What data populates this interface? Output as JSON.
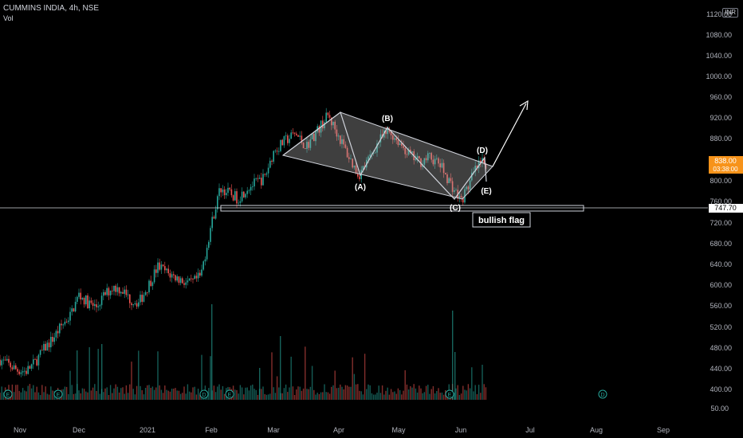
{
  "header": {
    "symbol_line": "CUMMINS INDIA, 4h, NSE",
    "vol_label": "Vol"
  },
  "currency_badge": "INR",
  "price_axis": {
    "ticks": [
      "1120.00",
      "1080.00",
      "1040.00",
      "1000.00",
      "960.00",
      "920.00",
      "880.00",
      "800.00",
      "760.00",
      "720.00",
      "680.00",
      "640.00",
      "600.00",
      "560.00",
      "520.00",
      "480.00",
      "440.00",
      "400.00"
    ],
    "last_price": "838.00",
    "countdown": "03:38:00",
    "level_label": "747.70",
    "volume_tick": "50.00"
  },
  "time_axis": [
    "Nov",
    "Dec",
    "2021",
    "Feb",
    "Mar",
    "Apr",
    "May",
    "Jun",
    "Jul",
    "Aug",
    "Sep"
  ],
  "annotations": {
    "wave_a": "(A)",
    "wave_b": "(B)",
    "wave_c": "(C)",
    "wave_d": "(D)",
    "wave_e": "(E)",
    "pattern_label": "bullish flag"
  },
  "event_markers": [
    "E",
    "E",
    "D",
    "E",
    "E",
    "D"
  ],
  "colors": {
    "up": "#26a69a",
    "down": "#ef5350",
    "background": "#000000",
    "price_badge": "#f7931a"
  },
  "chart_data": {
    "type": "candlestick",
    "timeframe": "4h",
    "ylim": [
      400,
      1130
    ],
    "anchors": [
      [
        "Nov",
        460
      ],
      [
        "Nov",
        450
      ],
      [
        "Nov",
        440
      ],
      [
        "Nov",
        438
      ],
      [
        "Nov",
        455
      ],
      [
        "Nov",
        480
      ],
      [
        "Nov",
        500
      ],
      [
        "Nov",
        525
      ],
      [
        "Nov",
        545
      ],
      [
        "Dec",
        585
      ],
      [
        "Dec",
        570
      ],
      [
        "Dec",
        560
      ],
      [
        "Dec",
        585
      ],
      [
        "Dec",
        600
      ],
      [
        "Dec",
        595
      ],
      [
        "Dec",
        575
      ],
      [
        "Dec",
        570
      ],
      [
        "2021",
        600
      ],
      [
        "2021",
        640
      ],
      [
        "2021",
        625
      ],
      [
        "2021",
        615
      ],
      [
        "2021",
        605
      ],
      [
        "2021",
        620
      ],
      [
        "Feb",
        720
      ],
      [
        "Feb",
        790
      ],
      [
        "Feb",
        780
      ],
      [
        "Feb",
        770
      ],
      [
        "Feb",
        790
      ],
      [
        "Feb",
        800
      ],
      [
        "Feb",
        810
      ],
      [
        "Mar",
        860
      ],
      [
        "Mar",
        880
      ],
      [
        "Mar",
        895
      ],
      [
        "Mar",
        870
      ],
      [
        "Mar",
        900
      ],
      [
        "Mar",
        930
      ],
      [
        "Apr",
        890
      ],
      [
        "Apr",
        850
      ],
      [
        "Apr",
        815
      ],
      [
        "Apr",
        845
      ],
      [
        "Apr",
        880
      ],
      [
        "Apr",
        900
      ],
      [
        "May",
        880
      ],
      [
        "May",
        855
      ],
      [
        "May",
        840
      ],
      [
        "May",
        850
      ],
      [
        "May",
        835
      ],
      [
        "May",
        800
      ],
      [
        "Jun",
        765
      ],
      [
        "Jun",
        785
      ],
      [
        "Jun",
        810
      ],
      [
        "Jun",
        830
      ],
      [
        "Jun",
        838
      ]
    ],
    "key_level": 747.7,
    "waves": [
      {
        "label": "(A)",
        "price": 815
      },
      {
        "label": "(B)",
        "price": 900
      },
      {
        "label": "(C)",
        "price": 762
      },
      {
        "label": "(D)",
        "price": 838
      },
      {
        "label": "(E)",
        "price": 800
      }
    ]
  }
}
